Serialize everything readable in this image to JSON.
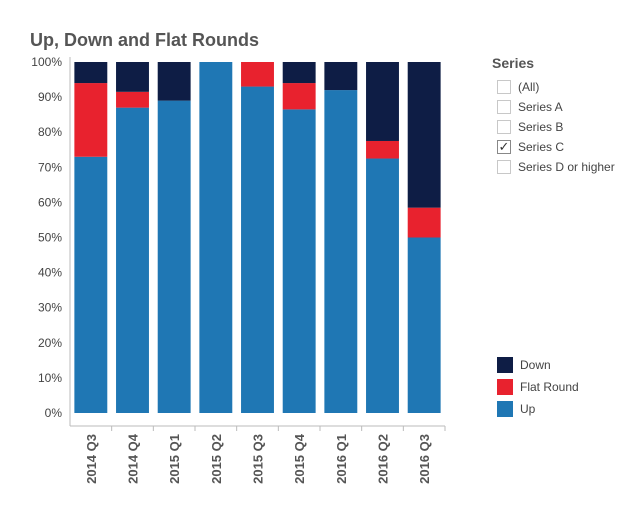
{
  "chart_data": {
    "type": "bar",
    "stacked": true,
    "title": "Up, Down and Flat Rounds",
    "categories": [
      "2014 Q3",
      "2014 Q4",
      "2015 Q1",
      "2015 Q2",
      "2015 Q3",
      "2015 Q4",
      "2016 Q1",
      "2016 Q2",
      "2016 Q3"
    ],
    "series": [
      {
        "name": "Up",
        "color": "#1f77b4",
        "values": [
          73,
          87,
          89,
          100,
          93,
          86.5,
          92,
          72.5,
          50
        ]
      },
      {
        "name": "Flat Round",
        "color": "#e8222e",
        "values": [
          21,
          4.5,
          0,
          0,
          7,
          7.5,
          0,
          5,
          8.5
        ]
      },
      {
        "name": "Down",
        "color": "#0e1d45",
        "values": [
          6,
          8.5,
          11,
          0,
          0,
          6,
          8,
          22.5,
          41.5
        ]
      }
    ],
    "ylim": [
      0,
      100
    ],
    "yticks": [
      "0%",
      "10%",
      "20%",
      "30%",
      "40%",
      "50%",
      "60%",
      "70%",
      "80%",
      "90%",
      "100%"
    ],
    "grid": false,
    "legend_position": "bottom-right"
  },
  "filter": {
    "title": "Series",
    "items": [
      {
        "label": "(All)",
        "checked": false
      },
      {
        "label": "Series A",
        "checked": false
      },
      {
        "label": "Series B",
        "checked": false
      },
      {
        "label": "Series C",
        "checked": true
      },
      {
        "label": "Series D or higher",
        "checked": false
      }
    ]
  },
  "legend": {
    "items": [
      {
        "label": "Down",
        "color": "#0e1d45"
      },
      {
        "label": "Flat Round",
        "color": "#e8222e"
      },
      {
        "label": "Up",
        "color": "#1f77b4"
      }
    ]
  }
}
